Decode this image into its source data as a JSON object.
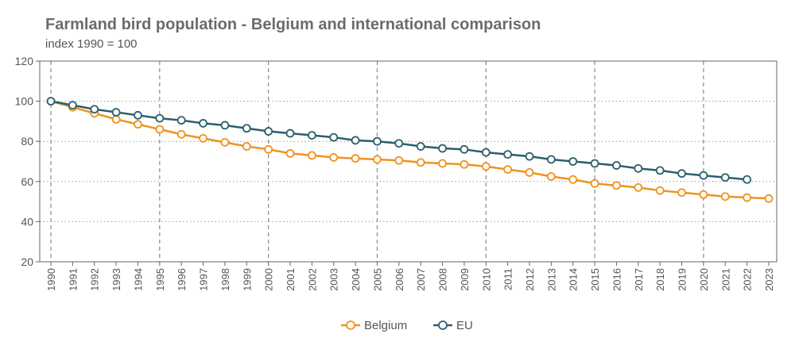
{
  "chart_data": {
    "type": "line",
    "title": "Farmland bird population - Belgium and international comparison",
    "subtitle": "index 1990 = 100",
    "xlabel": "",
    "ylabel": "",
    "ylim": [
      20,
      120
    ],
    "yticks": [
      20,
      40,
      60,
      80,
      100,
      120
    ],
    "categories": [
      "1990",
      "1991",
      "1992",
      "1993",
      "1994",
      "1995",
      "1996",
      "1997",
      "1998",
      "1999",
      "2000",
      "2001",
      "2002",
      "2003",
      "2004",
      "2005",
      "2006",
      "2007",
      "2008",
      "2009",
      "2010",
      "2011",
      "2012",
      "2013",
      "2014",
      "2015",
      "2016",
      "2017",
      "2018",
      "2019",
      "2020",
      "2021",
      "2022",
      "2023"
    ],
    "series": [
      {
        "name": "Belgium",
        "color": "#f0921e",
        "values": [
          100,
          97,
          94,
          91,
          88.5,
          86,
          83.5,
          81.5,
          79.5,
          77.5,
          76,
          74,
          73,
          72,
          71.5,
          71,
          70.5,
          69.5,
          69,
          68.5,
          67.5,
          66,
          64.5,
          62.5,
          61,
          59,
          58,
          57,
          55.5,
          54.5,
          53.5,
          52.5,
          52,
          51.5
        ]
      },
      {
        "name": "EU",
        "color": "#2a5f6e",
        "values": [
          100,
          98,
          96,
          94.5,
          93,
          91.5,
          90.5,
          89,
          88,
          86.5,
          85,
          84,
          83,
          82,
          80.5,
          80,
          79,
          77.5,
          76.5,
          76,
          74.5,
          73.5,
          72.5,
          71,
          70,
          69,
          68,
          66.5,
          65.5,
          64,
          63,
          62,
          61,
          null
        ]
      }
    ],
    "legend_position": "bottom-center",
    "grid": true
  }
}
